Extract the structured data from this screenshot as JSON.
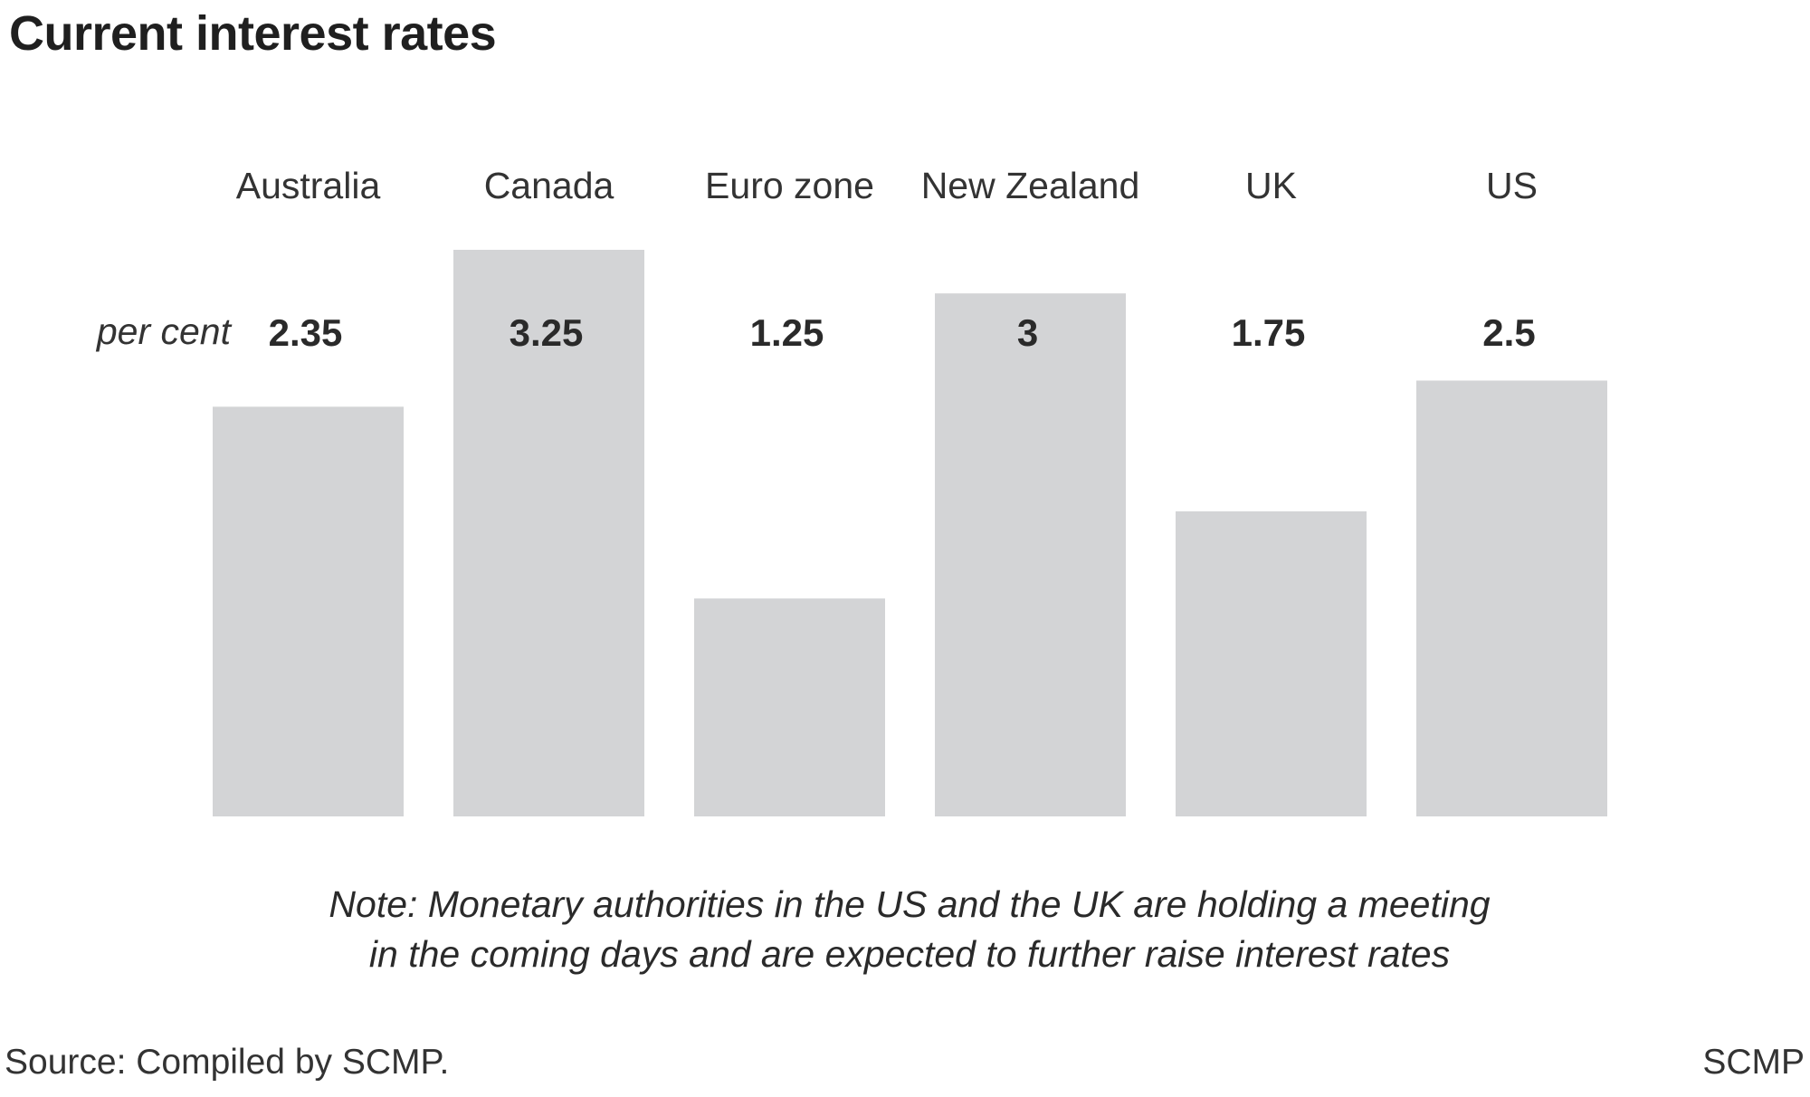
{
  "chart_data": {
    "type": "bar",
    "title": "Current interest rates",
    "unit_label": "per cent",
    "categories": [
      "Australia",
      "Canada",
      "Euro zone",
      "New Zealand",
      "UK",
      "US"
    ],
    "values": [
      2.35,
      3.25,
      1.25,
      3,
      1.75,
      2.5
    ],
    "value_labels": [
      "2.35",
      "3.25",
      "1.25",
      "3",
      "1.75",
      "2.5"
    ],
    "ylim": [
      0,
      3.25
    ],
    "grid": false,
    "bar_color": "#d3d4d6"
  },
  "note": {
    "line1": "Note: Monetary authorities in the US and the UK are holding a meeting",
    "line2": "in the coming days and are expected to further raise interest rates"
  },
  "source": "Source: Compiled by SCMP.",
  "credit": "SCMP"
}
